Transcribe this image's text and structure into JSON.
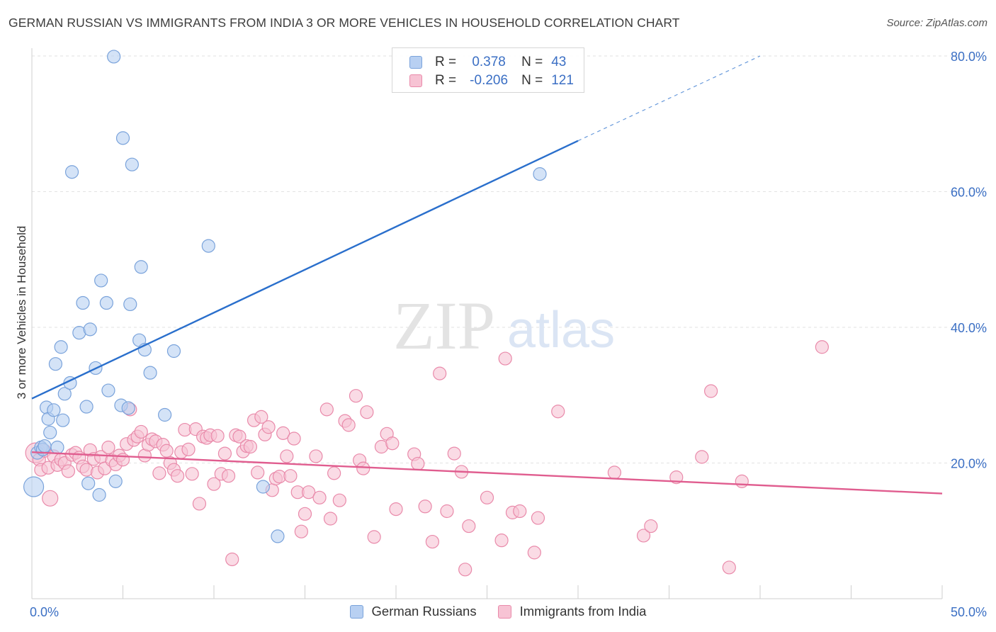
{
  "title": "GERMAN RUSSIAN VS IMMIGRANTS FROM INDIA 3 OR MORE VEHICLES IN HOUSEHOLD CORRELATION CHART",
  "source": "Source: ZipAtlas.com",
  "watermark": {
    "zip": "ZIP",
    "atlas": "atlas"
  },
  "colors": {
    "blue_fill": "#b8d0f2",
    "blue_stroke": "#7aa3db",
    "blue_line": "#2a6fcc",
    "pink_fill": "#f7c3d4",
    "pink_stroke": "#e98aaa",
    "pink_line": "#e05d8f",
    "tick_label": "#3b6fc4",
    "grid": "#e2e2e2"
  },
  "legend": {
    "rows": [
      {
        "r_label": "R =",
        "r_value": "0.378",
        "n_label": "N =",
        "n_value": "43"
      },
      {
        "r_label": "R =",
        "r_value": "-0.206",
        "n_label": "N =",
        "n_value": "121"
      }
    ]
  },
  "chart_data": {
    "type": "scatter",
    "title": "GERMAN RUSSIAN VS IMMIGRANTS FROM INDIA 3 OR MORE VEHICLES IN HOUSEHOLD CORRELATION CHART",
    "xlabel": "",
    "ylabel": "3 or more Vehicles in Household",
    "xlim": [
      0,
      50
    ],
    "ylim": [
      0,
      80
    ],
    "x_tick_labels": [
      {
        "value": 0,
        "label": "0.0%"
      },
      {
        "value": 50,
        "label": "50.0%"
      }
    ],
    "y_tick_labels": [
      {
        "value": 20,
        "label": "20.0%"
      },
      {
        "value": 40,
        "label": "40.0%"
      },
      {
        "value": 60,
        "label": "60.0%"
      },
      {
        "value": 80,
        "label": "80.0%"
      }
    ],
    "grid": true,
    "legend_position": "bottom-center",
    "series": [
      {
        "name": "German Russians",
        "color": "#b8d0f2",
        "points": [
          [
            0.1,
            16.5
          ],
          [
            0.3,
            21.5
          ],
          [
            0.5,
            22.3
          ],
          [
            0.6,
            22.0
          ],
          [
            0.7,
            22.5
          ],
          [
            0.8,
            28.2
          ],
          [
            0.9,
            26.5
          ],
          [
            1.0,
            24.5
          ],
          [
            1.2,
            27.8
          ],
          [
            1.3,
            34.6
          ],
          [
            1.4,
            22.3
          ],
          [
            1.6,
            37.1
          ],
          [
            1.7,
            26.3
          ],
          [
            1.8,
            30.2
          ],
          [
            2.1,
            31.8
          ],
          [
            2.2,
            62.9
          ],
          [
            2.6,
            39.2
          ],
          [
            2.8,
            43.6
          ],
          [
            3.0,
            28.3
          ],
          [
            3.1,
            17.0
          ],
          [
            3.2,
            39.7
          ],
          [
            3.5,
            34.0
          ],
          [
            3.7,
            15.3
          ],
          [
            3.8,
            46.9
          ],
          [
            4.1,
            43.6
          ],
          [
            4.2,
            30.7
          ],
          [
            4.5,
            79.9
          ],
          [
            4.6,
            17.3
          ],
          [
            4.9,
            28.5
          ],
          [
            5.0,
            67.9
          ],
          [
            5.4,
            43.4
          ],
          [
            5.3,
            28.1
          ],
          [
            5.5,
            64.0
          ],
          [
            5.9,
            38.1
          ],
          [
            6.0,
            48.9
          ],
          [
            6.2,
            36.7
          ],
          [
            6.5,
            33.3
          ],
          [
            7.3,
            27.1
          ],
          [
            7.8,
            36.5
          ],
          [
            9.7,
            52.0
          ],
          [
            12.7,
            16.5
          ],
          [
            13.5,
            9.2
          ],
          [
            27.9,
            62.6
          ]
        ]
      },
      {
        "name": "Immigrants from India",
        "color": "#f7c3d4",
        "points": [
          [
            0.2,
            21.5
          ],
          [
            0.4,
            20.5
          ],
          [
            0.5,
            19.0
          ],
          [
            0.7,
            21.8
          ],
          [
            0.9,
            19.3
          ],
          [
            1.0,
            14.8
          ],
          [
            1.2,
            21.0
          ],
          [
            1.4,
            19.7
          ],
          [
            1.6,
            20.5
          ],
          [
            1.8,
            20.0
          ],
          [
            2.0,
            18.8
          ],
          [
            2.2,
            21.2
          ],
          [
            2.4,
            21.5
          ],
          [
            2.6,
            20.8
          ],
          [
            2.8,
            19.5
          ],
          [
            3.0,
            19.0
          ],
          [
            3.2,
            21.9
          ],
          [
            3.4,
            20.6
          ],
          [
            3.6,
            18.6
          ],
          [
            3.8,
            20.9
          ],
          [
            4.0,
            19.2
          ],
          [
            4.2,
            22.3
          ],
          [
            4.4,
            20.4
          ],
          [
            4.6,
            19.8
          ],
          [
            4.8,
            21.1
          ],
          [
            5.0,
            20.5
          ],
          [
            5.2,
            22.8
          ],
          [
            5.4,
            27.9
          ],
          [
            5.6,
            23.4
          ],
          [
            5.8,
            23.9
          ],
          [
            6.0,
            24.6
          ],
          [
            6.2,
            21.1
          ],
          [
            6.4,
            22.7
          ],
          [
            6.6,
            23.5
          ],
          [
            6.8,
            23.2
          ],
          [
            7.0,
            18.5
          ],
          [
            7.2,
            22.7
          ],
          [
            7.4,
            21.8
          ],
          [
            7.6,
            20.0
          ],
          [
            7.8,
            19.0
          ],
          [
            8.0,
            18.1
          ],
          [
            8.2,
            21.6
          ],
          [
            8.4,
            24.9
          ],
          [
            8.6,
            22.0
          ],
          [
            8.8,
            18.4
          ],
          [
            9.0,
            25.0
          ],
          [
            9.2,
            14.0
          ],
          [
            9.4,
            23.9
          ],
          [
            9.6,
            23.7
          ],
          [
            9.8,
            24.1
          ],
          [
            10.0,
            16.9
          ],
          [
            10.2,
            24.0
          ],
          [
            10.4,
            18.4
          ],
          [
            10.6,
            21.4
          ],
          [
            10.8,
            18.1
          ],
          [
            11.0,
            5.8
          ],
          [
            11.2,
            24.1
          ],
          [
            11.4,
            23.9
          ],
          [
            11.6,
            21.7
          ],
          [
            11.8,
            22.5
          ],
          [
            12.0,
            22.4
          ],
          [
            12.2,
            26.3
          ],
          [
            12.4,
            18.6
          ],
          [
            12.6,
            26.8
          ],
          [
            12.8,
            24.2
          ],
          [
            13.0,
            25.3
          ],
          [
            13.2,
            16.0
          ],
          [
            13.4,
            17.7
          ],
          [
            13.6,
            18.0
          ],
          [
            13.8,
            24.4
          ],
          [
            14.0,
            21.0
          ],
          [
            14.2,
            18.1
          ],
          [
            14.4,
            23.6
          ],
          [
            14.6,
            15.7
          ],
          [
            14.8,
            9.9
          ],
          [
            15.0,
            12.5
          ],
          [
            15.2,
            15.7
          ],
          [
            15.6,
            21.0
          ],
          [
            15.8,
            14.9
          ],
          [
            16.2,
            27.9
          ],
          [
            16.4,
            11.8
          ],
          [
            16.6,
            18.5
          ],
          [
            16.9,
            14.5
          ],
          [
            17.2,
            26.2
          ],
          [
            17.4,
            25.6
          ],
          [
            17.8,
            29.9
          ],
          [
            18.0,
            20.4
          ],
          [
            18.2,
            19.2
          ],
          [
            18.4,
            27.5
          ],
          [
            18.8,
            9.1
          ],
          [
            19.2,
            22.4
          ],
          [
            19.5,
            24.3
          ],
          [
            19.8,
            22.9
          ],
          [
            20.0,
            13.2
          ],
          [
            21.0,
            21.3
          ],
          [
            21.2,
            19.9
          ],
          [
            21.6,
            13.6
          ],
          [
            22.0,
            8.4
          ],
          [
            22.4,
            33.2
          ],
          [
            22.8,
            12.9
          ],
          [
            23.2,
            21.4
          ],
          [
            23.6,
            18.7
          ],
          [
            23.8,
            4.3
          ],
          [
            24.0,
            10.7
          ],
          [
            25.0,
            14.9
          ],
          [
            25.8,
            8.6
          ],
          [
            26.0,
            35.4
          ],
          [
            26.4,
            12.7
          ],
          [
            26.8,
            12.9
          ],
          [
            27.6,
            6.8
          ],
          [
            27.8,
            11.9
          ],
          [
            28.9,
            27.6
          ],
          [
            32.0,
            18.6
          ],
          [
            33.6,
            9.3
          ],
          [
            34.0,
            10.7
          ],
          [
            35.4,
            17.9
          ],
          [
            36.8,
            20.9
          ],
          [
            37.3,
            30.6
          ],
          [
            38.3,
            4.6
          ],
          [
            39.0,
            17.3
          ],
          [
            43.4,
            37.1
          ]
        ]
      }
    ],
    "trend_lines": [
      {
        "series": "German Russians",
        "x_start": 0,
        "y_start": 29.5,
        "x_solid_end": 30,
        "y_solid_end": 67.5,
        "x_dashed_end": 40,
        "y_dashed_end": 80
      },
      {
        "series": "Immigrants from India",
        "x_start": 0,
        "y_start": 21.6,
        "x_end": 50,
        "y_end": 15.5
      }
    ]
  },
  "bottom_legend": [
    {
      "label": "German Russians"
    },
    {
      "label": "Immigrants from India"
    }
  ]
}
